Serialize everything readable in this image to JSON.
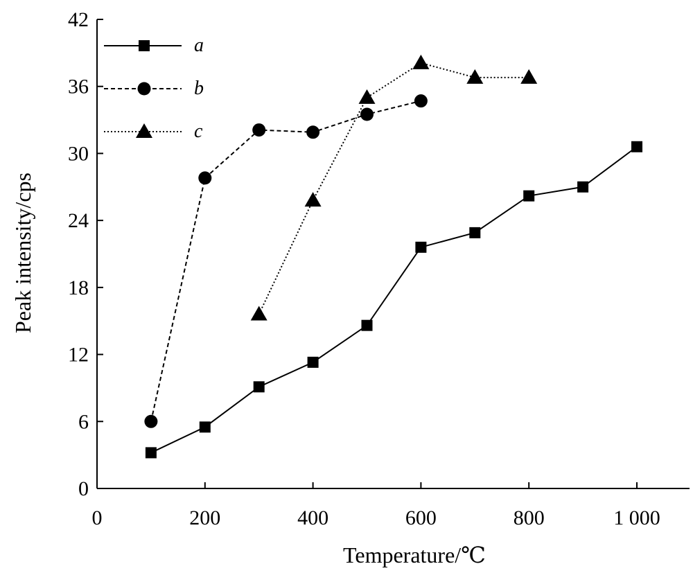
{
  "chart_data": {
    "type": "line",
    "title": "",
    "xlabel": "Temperature/℃",
    "ylabel": "Peak intensity/cps",
    "xlim": [
      0,
      1000
    ],
    "ylim": [
      0,
      42
    ],
    "xticks": [
      0,
      200,
      400,
      600,
      800,
      1000
    ],
    "xtick_labels": [
      "0",
      "200",
      "400",
      "600",
      "800",
      "1 000"
    ],
    "yticks": [
      0,
      6,
      12,
      18,
      24,
      30,
      36,
      42
    ],
    "ytick_labels": [
      "0",
      "6",
      "12",
      "18",
      "24",
      "30",
      "36",
      "42"
    ],
    "grid": false,
    "legend_position": "top-left",
    "series": [
      {
        "name": "a",
        "marker": "square",
        "line": "solid",
        "x": [
          100,
          200,
          300,
          400,
          500,
          600,
          700,
          800,
          900,
          1000
        ],
        "y": [
          3.2,
          5.5,
          9.1,
          11.3,
          14.6,
          21.6,
          22.9,
          26.2,
          27.0,
          30.6
        ]
      },
      {
        "name": "b",
        "marker": "circle",
        "line": "dashed",
        "x": [
          100,
          200,
          300,
          400,
          500,
          600
        ],
        "y": [
          6.0,
          27.8,
          32.1,
          31.9,
          33.5,
          34.7
        ]
      },
      {
        "name": "c",
        "marker": "triangle",
        "line": "dotted",
        "x": [
          300,
          400,
          500,
          600,
          700,
          800
        ],
        "y": [
          15.6,
          25.8,
          35.0,
          38.1,
          36.8,
          36.8
        ]
      }
    ]
  }
}
